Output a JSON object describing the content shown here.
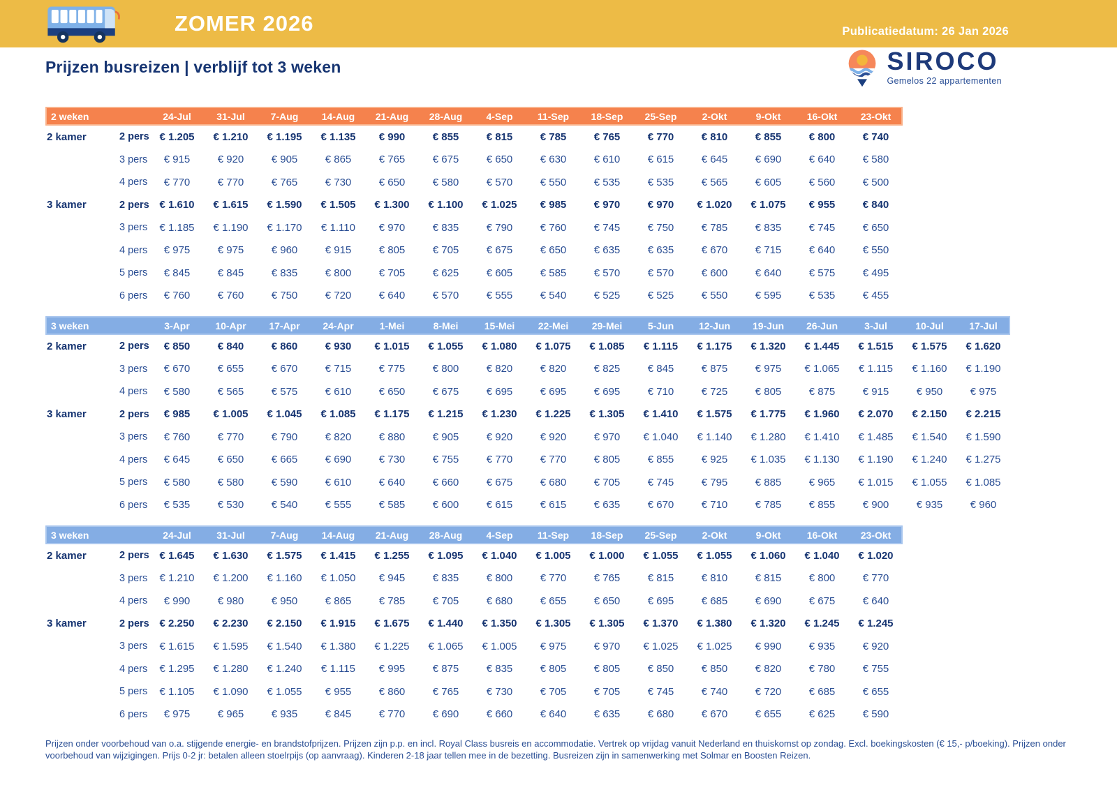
{
  "colors": {
    "yellow": "#EDBB46",
    "orange": "#F5824D",
    "blue": "#84ADE4",
    "navy": "#2A4E94",
    "navy_strong": "#173572",
    "white": "#FFFFFF"
  },
  "page": {
    "season_label": "ZOMER 2026",
    "publication_date": "Publicatiedatum: 26 Jan 2026",
    "title": "Prijzen busreizen | verblijf tot 3 weken",
    "logo_name": "SIROCO",
    "logo_subtitle": "Gemelos 22 appartementen",
    "footer_text": "Prijzen onder voorbehoud van o.a. stijgende energie- en brandstofprijzen. Prijzen zijn p.p. en incl. Royal Class busreis en accommodatie. Vertrek op vrijdag vanuit Nederland en thuiskomst op zondag. Excl. boekingskosten (€ 15,- p/boeking). Prijzen onder voorbehoud van wijzigingen. Prijs 0-2 jr: betalen alleen stoelrpijs (op aanvraag). Kinderen 2-18 jaar tellen mee in de bezetting. Busreizen zijn in samenwerking met Solmar en Boosten Reizen."
  },
  "tables": [
    {
      "id": "2weken-jul-okt",
      "label": "2 weken",
      "theme": "orange",
      "dates": [
        "24-Jul",
        "31-Jul",
        "7-Aug",
        "14-Aug",
        "21-Aug",
        "28-Aug",
        "4-Sep",
        "11-Sep",
        "18-Sep",
        "25-Sep",
        "2-Okt",
        "9-Okt",
        "16-Okt",
        "23-Okt"
      ],
      "groups": [
        {
          "room": "2 kamer",
          "rows": [
            {
              "pers": "2 pers",
              "bold": true,
              "values": [
                "€ 1.205",
                "€ 1.210",
                "€ 1.195",
                "€ 1.135",
                "€ 990",
                "€ 855",
                "€ 815",
                "€ 785",
                "€ 765",
                "€ 770",
                "€ 810",
                "€ 855",
                "€ 800",
                "€ 740"
              ]
            },
            {
              "pers": "3 pers",
              "bold": false,
              "values": [
                "€ 915",
                "€ 920",
                "€ 905",
                "€ 865",
                "€ 765",
                "€ 675",
                "€ 650",
                "€ 630",
                "€ 610",
                "€ 615",
                "€ 645",
                "€ 690",
                "€ 640",
                "€ 580"
              ]
            },
            {
              "pers": "4 pers",
              "bold": false,
              "values": [
                "€ 770",
                "€ 770",
                "€ 765",
                "€ 730",
                "€ 650",
                "€ 580",
                "€ 570",
                "€ 550",
                "€ 535",
                "€ 535",
                "€ 565",
                "€ 605",
                "€ 560",
                "€ 500"
              ]
            }
          ]
        },
        {
          "room": "3 kamer",
          "rows": [
            {
              "pers": "2 pers",
              "bold": true,
              "values": [
                "€ 1.610",
                "€ 1.615",
                "€ 1.590",
                "€ 1.505",
                "€ 1.300",
                "€ 1.100",
                "€ 1.025",
                "€ 985",
                "€ 970",
                "€ 970",
                "€ 1.020",
                "€ 1.075",
                "€ 955",
                "€ 840"
              ]
            },
            {
              "pers": "3 pers",
              "bold": false,
              "values": [
                "€ 1.185",
                "€ 1.190",
                "€ 1.170",
                "€ 1.110",
                "€ 970",
                "€ 835",
                "€ 790",
                "€ 760",
                "€ 745",
                "€ 750",
                "€ 785",
                "€ 835",
                "€ 745",
                "€ 650"
              ]
            },
            {
              "pers": "4 pers",
              "bold": false,
              "values": [
                "€ 975",
                "€ 975",
                "€ 960",
                "€ 915",
                "€ 805",
                "€ 705",
                "€ 675",
                "€ 650",
                "€ 635",
                "€ 635",
                "€ 670",
                "€ 715",
                "€ 640",
                "€ 550"
              ]
            },
            {
              "pers": "5 pers",
              "bold": false,
              "values": [
                "€ 845",
                "€ 845",
                "€ 835",
                "€ 800",
                "€ 705",
                "€ 625",
                "€ 605",
                "€ 585",
                "€ 570",
                "€ 570",
                "€ 600",
                "€ 640",
                "€ 575",
                "€ 495"
              ]
            },
            {
              "pers": "6 pers",
              "bold": false,
              "values": [
                "€ 760",
                "€ 760",
                "€ 750",
                "€ 720",
                "€ 640",
                "€ 570",
                "€ 555",
                "€ 540",
                "€ 525",
                "€ 525",
                "€ 550",
                "€ 595",
                "€ 535",
                "€ 455"
              ]
            }
          ]
        }
      ]
    },
    {
      "id": "3weken-apr-jul",
      "label": "3 weken",
      "theme": "blue",
      "dates": [
        "3-Apr",
        "10-Apr",
        "17-Apr",
        "24-Apr",
        "1-Mei",
        "8-Mei",
        "15-Mei",
        "22-Mei",
        "29-Mei",
        "5-Jun",
        "12-Jun",
        "19-Jun",
        "26-Jun",
        "3-Jul",
        "10-Jul",
        "17-Jul"
      ],
      "groups": [
        {
          "room": "2 kamer",
          "rows": [
            {
              "pers": "2 pers",
              "bold": true,
              "values": [
                "€ 850",
                "€ 840",
                "€ 860",
                "€ 930",
                "€ 1.015",
                "€ 1.055",
                "€ 1.080",
                "€ 1.075",
                "€ 1.085",
                "€ 1.115",
                "€ 1.175",
                "€ 1.320",
                "€ 1.445",
                "€ 1.515",
                "€ 1.575",
                "€ 1.620"
              ]
            },
            {
              "pers": "3 pers",
              "bold": false,
              "values": [
                "€ 670",
                "€ 655",
                "€ 670",
                "€ 715",
                "€ 775",
                "€ 800",
                "€ 820",
                "€ 820",
                "€ 825",
                "€ 845",
                "€ 875",
                "€ 975",
                "€ 1.065",
                "€ 1.115",
                "€ 1.160",
                "€ 1.190"
              ]
            },
            {
              "pers": "4 pers",
              "bold": false,
              "values": [
                "€ 580",
                "€ 565",
                "€ 575",
                "€ 610",
                "€ 650",
                "€ 675",
                "€ 695",
                "€ 695",
                "€ 695",
                "€ 710",
                "€ 725",
                "€ 805",
                "€ 875",
                "€ 915",
                "€ 950",
                "€ 975"
              ]
            }
          ]
        },
        {
          "room": "3 kamer",
          "rows": [
            {
              "pers": "2 pers",
              "bold": true,
              "values": [
                "€ 985",
                "€ 1.005",
                "€ 1.045",
                "€ 1.085",
                "€ 1.175",
                "€ 1.215",
                "€ 1.230",
                "€ 1.225",
                "€ 1.305",
                "€ 1.410",
                "€ 1.575",
                "€ 1.775",
                "€ 1.960",
                "€ 2.070",
                "€ 2.150",
                "€ 2.215"
              ]
            },
            {
              "pers": "3 pers",
              "bold": false,
              "values": [
                "€ 760",
                "€ 770",
                "€ 790",
                "€ 820",
                "€ 880",
                "€ 905",
                "€ 920",
                "€ 920",
                "€ 970",
                "€ 1.040",
                "€ 1.140",
                "€ 1.280",
                "€ 1.410",
                "€ 1.485",
                "€ 1.540",
                "€ 1.590"
              ]
            },
            {
              "pers": "4 pers",
              "bold": false,
              "values": [
                "€ 645",
                "€ 650",
                "€ 665",
                "€ 690",
                "€ 730",
                "€ 755",
                "€ 770",
                "€ 770",
                "€ 805",
                "€ 855",
                "€ 925",
                "€ 1.035",
                "€ 1.130",
                "€ 1.190",
                "€ 1.240",
                "€ 1.275"
              ]
            },
            {
              "pers": "5 pers",
              "bold": false,
              "values": [
                "€ 580",
                "€ 580",
                "€ 590",
                "€ 610",
                "€ 640",
                "€ 660",
                "€ 675",
                "€ 680",
                "€ 705",
                "€ 745",
                "€ 795",
                "€ 885",
                "€ 965",
                "€ 1.015",
                "€ 1.055",
                "€ 1.085"
              ]
            },
            {
              "pers": "6 pers",
              "bold": false,
              "values": [
                "€ 535",
                "€ 530",
                "€ 540",
                "€ 555",
                "€ 585",
                "€ 600",
                "€ 615",
                "€ 615",
                "€ 635",
                "€ 670",
                "€ 710",
                "€ 785",
                "€ 855",
                "€ 900",
                "€ 935",
                "€ 960"
              ]
            }
          ]
        }
      ]
    },
    {
      "id": "3weken-jul-okt",
      "label": "3 weken",
      "theme": "blue",
      "dates": [
        "24-Jul",
        "31-Jul",
        "7-Aug",
        "14-Aug",
        "21-Aug",
        "28-Aug",
        "4-Sep",
        "11-Sep",
        "18-Sep",
        "25-Sep",
        "2-Okt",
        "9-Okt",
        "16-Okt",
        "23-Okt"
      ],
      "groups": [
        {
          "room": "2 kamer",
          "rows": [
            {
              "pers": "2 pers",
              "bold": true,
              "values": [
                "€ 1.645",
                "€ 1.630",
                "€ 1.575",
                "€ 1.415",
                "€ 1.255",
                "€ 1.095",
                "€ 1.040",
                "€ 1.005",
                "€ 1.000",
                "€ 1.055",
                "€ 1.055",
                "€ 1.060",
                "€ 1.040",
                "€ 1.020"
              ]
            },
            {
              "pers": "3 pers",
              "bold": false,
              "values": [
                "€ 1.210",
                "€ 1.200",
                "€ 1.160",
                "€ 1.050",
                "€ 945",
                "€ 835",
                "€ 800",
                "€ 770",
                "€ 765",
                "€ 815",
                "€ 810",
                "€ 815",
                "€ 800",
                "€ 770"
              ]
            },
            {
              "pers": "4 pers",
              "bold": false,
              "values": [
                "€ 990",
                "€ 980",
                "€ 950",
                "€ 865",
                "€ 785",
                "€ 705",
                "€ 680",
                "€ 655",
                "€ 650",
                "€ 695",
                "€ 685",
                "€ 690",
                "€ 675",
                "€ 640"
              ]
            }
          ]
        },
        {
          "room": "3 kamer",
          "rows": [
            {
              "pers": "2 pers",
              "bold": true,
              "values": [
                "€ 2.250",
                "€ 2.230",
                "€ 2.150",
                "€ 1.915",
                "€ 1.675",
                "€ 1.440",
                "€ 1.350",
                "€ 1.305",
                "€ 1.305",
                "€ 1.370",
                "€ 1.380",
                "€ 1.320",
                "€ 1.245",
                "€ 1.245"
              ]
            },
            {
              "pers": "3 pers",
              "bold": false,
              "values": [
                "€ 1.615",
                "€ 1.595",
                "€ 1.540",
                "€ 1.380",
                "€ 1.225",
                "€ 1.065",
                "€ 1.005",
                "€ 975",
                "€ 970",
                "€ 1.025",
                "€ 1.025",
                "€ 990",
                "€ 935",
                "€ 920"
              ]
            },
            {
              "pers": "4 pers",
              "bold": false,
              "values": [
                "€ 1.295",
                "€ 1.280",
                "€ 1.240",
                "€ 1.115",
                "€ 995",
                "€ 875",
                "€ 835",
                "€ 805",
                "€ 805",
                "€ 850",
                "€ 850",
                "€ 820",
                "€ 780",
                "€ 755"
              ]
            },
            {
              "pers": "5 pers",
              "bold": false,
              "values": [
                "€ 1.105",
                "€ 1.090",
                "€ 1.055",
                "€ 955",
                "€ 860",
                "€ 765",
                "€ 730",
                "€ 705",
                "€ 705",
                "€ 745",
                "€ 740",
                "€ 720",
                "€ 685",
                "€ 655"
              ]
            },
            {
              "pers": "6 pers",
              "bold": false,
              "values": [
                "€ 975",
                "€ 965",
                "€ 935",
                "€ 845",
                "€ 770",
                "€ 690",
                "€ 660",
                "€ 640",
                "€ 635",
                "€ 680",
                "€ 670",
                "€ 655",
                "€ 625",
                "€ 590"
              ]
            }
          ]
        }
      ]
    }
  ]
}
